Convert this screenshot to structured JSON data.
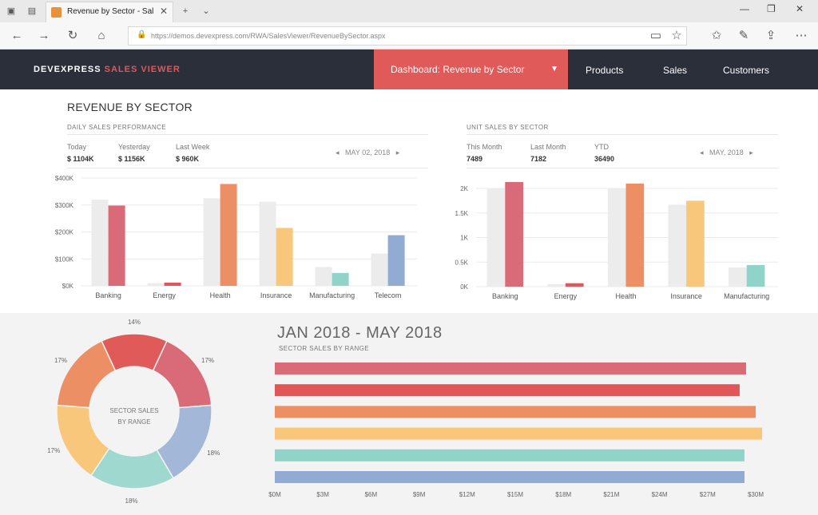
{
  "browser": {
    "tab_title": "Revenue by Sector - Sal",
    "url": "https://demos.devexpress.com/RWA/SalesViewer/RevenueBySector.aspx"
  },
  "app": {
    "logo_a": "DEVEXPRESS",
    "logo_b": "SALES VIEWER",
    "nav_active": "Dashboard: Revenue by Sector",
    "nav": [
      "Products",
      "Sales",
      "Customers"
    ]
  },
  "page_title": "REVENUE BY SECTOR",
  "daily": {
    "subtitle": "DAILY SALES PERFORMANCE",
    "kpis": [
      {
        "label": "Today",
        "value": "$ 1104K"
      },
      {
        "label": "Yesterday",
        "value": "$ 1156K"
      },
      {
        "label": "Last Week",
        "value": "$ 960K"
      }
    ],
    "date": "MAY 02, 2018"
  },
  "units": {
    "subtitle": "UNIT SALES BY SECTOR",
    "kpis": [
      {
        "label": "This Month",
        "value": "7489"
      },
      {
        "label": "Last Month",
        "value": "7182"
      },
      {
        "label": "YTD",
        "value": "36490"
      }
    ],
    "date": "MAY, 2018"
  },
  "range": {
    "title": "JAN 2018 - MAY 2018",
    "subtitle": "SECTOR SALES BY RANGE",
    "donut_center": [
      "SECTOR SALES",
      "BY RANGE"
    ]
  },
  "chart_data": [
    {
      "type": "bar",
      "categories": [
        "Banking",
        "Energy",
        "Health",
        "Insurance",
        "Manufacturing",
        "Telecom"
      ],
      "series": [
        {
          "values": [
            320,
            10,
            325,
            312,
            70,
            120
          ]
        },
        {
          "values": [
            298,
            12,
            378,
            215,
            48,
            188
          ]
        }
      ],
      "ylim": [
        0,
        400
      ],
      "yticks": [
        "$0K",
        "$100K",
        "$200K",
        "$300K",
        "$400K"
      ],
      "colors": [
        "#d96b79",
        "#e15759",
        "#ec8f65",
        "#f9c77c",
        "#8fd3c9",
        "#91abd3"
      ]
    },
    {
      "type": "bar",
      "categories": [
        "Banking",
        "Energy",
        "Health",
        "Insurance",
        "Manufacturing"
      ],
      "series": [
        {
          "values": [
            2000,
            50,
            2000,
            1670,
            390
          ]
        },
        {
          "values": [
            2130,
            70,
            2100,
            1750,
            440
          ]
        }
      ],
      "ylim": [
        0,
        2000
      ],
      "yticks": [
        "0K",
        "0.5K",
        "1K",
        "1.5K",
        "2K"
      ],
      "colors": [
        "#d96b79",
        "#e15759",
        "#ec8f65",
        "#f9c77c",
        "#8fd3c9"
      ]
    },
    {
      "type": "pie",
      "slices": [
        {
          "label": "14%",
          "value": 14
        },
        {
          "label": "17%",
          "value": 17
        },
        {
          "label": "18%",
          "value": 18
        },
        {
          "label": "18%",
          "value": 18
        },
        {
          "label": "17%",
          "value": 17
        },
        {
          "label": "17%",
          "value": 17
        }
      ],
      "colors": [
        "#e05a5a",
        "#d96b79",
        "#a3b7d8",
        "#9fd8cf",
        "#f9c77c",
        "#ec8f65"
      ]
    },
    {
      "type": "bar",
      "orientation": "horizontal",
      "values": [
        29.4,
        29.0,
        30.0,
        30.4,
        29.3,
        29.3
      ],
      "xlim": [
        0,
        30
      ],
      "xticks": [
        "$0M",
        "$3M",
        "$6M",
        "$9M",
        "$12M",
        "$15M",
        "$18M",
        "$21M",
        "$24M",
        "$27M",
        "$30M"
      ],
      "colors": [
        "#d96b79",
        "#e15759",
        "#ec8f65",
        "#f9c77c",
        "#8fd3c9",
        "#91abd3"
      ]
    }
  ]
}
